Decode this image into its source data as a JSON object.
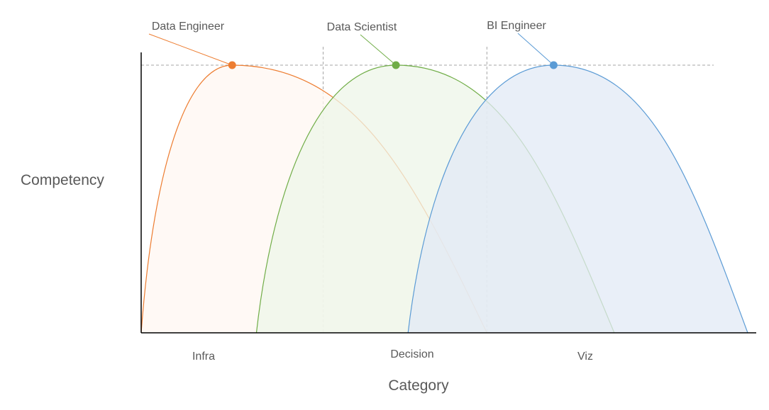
{
  "chart_data": {
    "type": "area",
    "title": "",
    "xlabel": "Category",
    "ylabel": "Competency",
    "categories": [
      "Infra",
      "Decision",
      "Viz"
    ],
    "x_range": [
      0,
      10
    ],
    "ylim": [
      0,
      1
    ],
    "grid": "dashed vertical category separators and a dashed peak reference line",
    "series": [
      {
        "name": "Data Engineer",
        "color": "#ED7D31",
        "fill": "#FFF7F2",
        "start": 0.0,
        "peak": 1.5,
        "end": 5.7,
        "peak_value": 1.0
      },
      {
        "name": "Data Scientist",
        "color": "#70AD47",
        "fill": "#EEF5E8",
        "start": 1.9,
        "peak": 4.2,
        "end": 7.8,
        "peak_value": 1.0
      },
      {
        "name": "BI Engineer",
        "color": "#5B9BD5",
        "fill": "#E2EAF5",
        "start": 4.4,
        "peak": 6.8,
        "end": 10.0,
        "peak_value": 1.0
      }
    ],
    "category_separators": [
      3.0,
      5.7
    ],
    "peak_reference_value": 1.0
  }
}
